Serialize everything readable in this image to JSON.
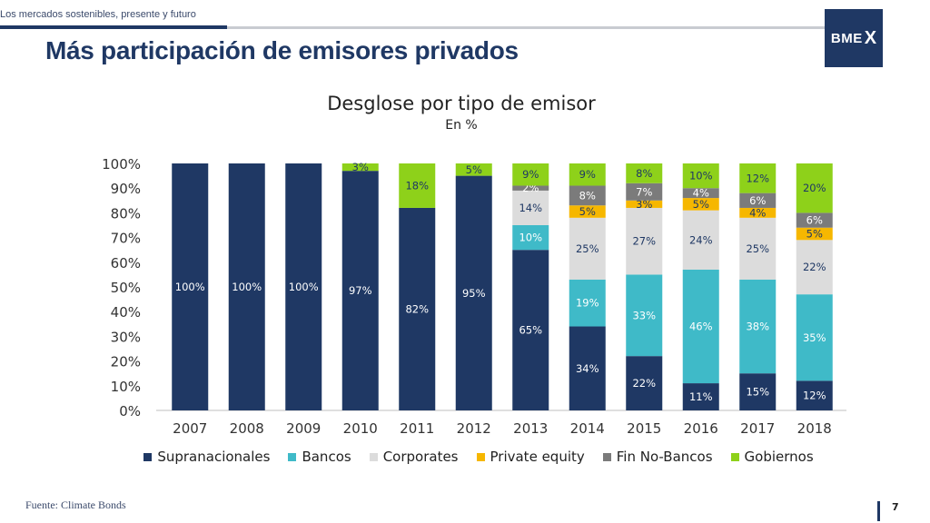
{
  "header": {
    "subtitle": "Los mercados sostenibles, presente y futuro",
    "title": "Más participación de emisores privados",
    "logo_text": "BME",
    "logo_mark": "X"
  },
  "colors": {
    "navy": "#1f3864",
    "accent": "#1f3864",
    "title": "#1f3864"
  },
  "footer": {
    "source": "Fuente: Climate Bonds",
    "page": "7"
  },
  "chart_data": {
    "type": "bar",
    "stacked": true,
    "title": "Desglose por tipo de emisor",
    "subtitle": "En %",
    "xlabel": "",
    "ylabel": "",
    "ylim": [
      0,
      100
    ],
    "yticks": [
      "0%",
      "10%",
      "20%",
      "30%",
      "40%",
      "50%",
      "60%",
      "70%",
      "80%",
      "90%",
      "100%"
    ],
    "grid": false,
    "legend_position": "bottom",
    "categories": [
      "2007",
      "2008",
      "2009",
      "2010",
      "2011",
      "2012",
      "2013",
      "2014",
      "2015",
      "2016",
      "2017",
      "2018"
    ],
    "series": [
      {
        "name": "Supranacionales",
        "color": "#1f3864",
        "label_color": "#ffffff",
        "values": [
          100,
          100,
          100,
          97,
          82,
          95,
          65,
          34,
          22,
          11,
          15,
          12
        ]
      },
      {
        "name": "Bancos",
        "color": "#3fbac8",
        "label_color": "#ffffff",
        "values": [
          0,
          0,
          0,
          0,
          0,
          0,
          10,
          19,
          33,
          46,
          38,
          35
        ]
      },
      {
        "name": "Corporates",
        "color": "#dcdcdc",
        "label_color": "#1f3864",
        "values": [
          0,
          0,
          0,
          0,
          0,
          0,
          14,
          25,
          27,
          24,
          25,
          22
        ]
      },
      {
        "name": "Private equity",
        "color": "#f6b700",
        "label_color": "#1f3864",
        "values": [
          0,
          0,
          0,
          0,
          0,
          0,
          0,
          5,
          3,
          5,
          4,
          5
        ]
      },
      {
        "name": "Fin No-Bancos",
        "color": "#7b7b7b",
        "label_color": "#ffffff",
        "values": [
          0,
          0,
          0,
          0,
          0,
          0,
          2,
          8,
          7,
          4,
          6,
          6
        ]
      },
      {
        "name": "Gobiernos",
        "color": "#8ed11a",
        "label_color": "#1f3864",
        "values": [
          0,
          0,
          0,
          3,
          18,
          5,
          9,
          9,
          8,
          10,
          12,
          20
        ]
      }
    ]
  }
}
